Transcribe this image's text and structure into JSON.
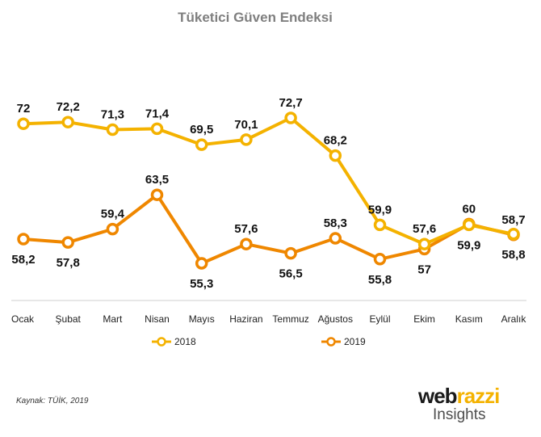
{
  "chart_data": {
    "type": "line",
    "title": "Tüketici Güven Endeksi",
    "categories": [
      "Ocak",
      "Şubat",
      "Mart",
      "Nisan",
      "Mayıs",
      "Haziran",
      "Temmuz",
      "Ağustos",
      "Eylül",
      "Ekim",
      "Kasım",
      "Aralık"
    ],
    "series": [
      {
        "name": "2018",
        "color": "#f4b200",
        "values": [
          72,
          72.2,
          71.3,
          71.4,
          69.5,
          70.1,
          72.7,
          68.2,
          59.9,
          57.6,
          59.9,
          58.8
        ],
        "labels": [
          "72",
          "72,2",
          "71,3",
          "71,4",
          "69,5",
          "70,1",
          "72,7",
          "68,2",
          "59,9",
          "57,6",
          "59,9",
          "58,8"
        ]
      },
      {
        "name": "2019",
        "color": "#ef8700",
        "values": [
          58.2,
          57.8,
          59.4,
          63.5,
          55.3,
          57.6,
          56.5,
          58.3,
          55.8,
          57,
          60,
          58.7
        ],
        "labels": [
          "58,2",
          "57,8",
          "59,4",
          "63,5",
          "55,3",
          "57,6",
          "56,5",
          "58,3",
          "55,8",
          "57",
          "60",
          "58,7"
        ]
      }
    ],
    "xlabel": "",
    "ylabel": "",
    "ylim": [
      50,
      78
    ],
    "grid": false,
    "legend": "bottom"
  },
  "source": "Kaynak: TÜİK, 2019",
  "logo": {
    "top_left": "web",
    "top_right": "razzi",
    "bottom": "Insights"
  }
}
